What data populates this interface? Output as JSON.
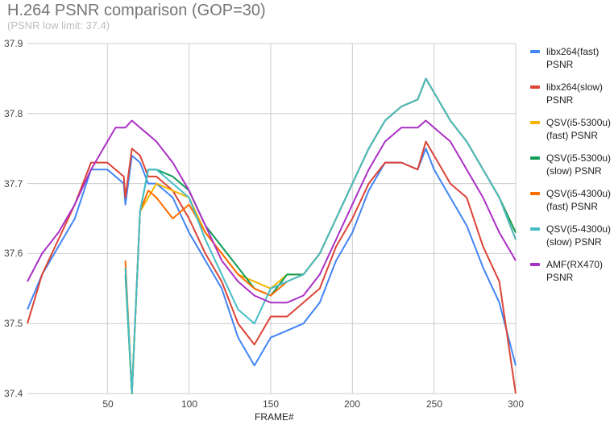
{
  "chart_data": {
    "type": "line",
    "title": "H.264 PSNR comparison (GOP=30)",
    "subtitle": "(PSNR low limit: 37.4)",
    "xlabel": "FRAME#",
    "ylabel": "",
    "xlim": [
      1,
      300
    ],
    "ylim": [
      37.4,
      37.9
    ],
    "grid": true,
    "legend_position": "right",
    "y_ticks": [
      "37.9",
      "37.8",
      "37.7",
      "37.6",
      "37.5",
      "37.4"
    ],
    "x_ticks": [
      "50",
      "100",
      "150",
      "200",
      "250",
      "300"
    ],
    "x": [
      1,
      10,
      20,
      30,
      40,
      50,
      55,
      60,
      61,
      65,
      70,
      75,
      80,
      90,
      100,
      110,
      120,
      130,
      140,
      150,
      160,
      170,
      180,
      190,
      200,
      210,
      220,
      230,
      240,
      245,
      250,
      260,
      270,
      280,
      290,
      300
    ],
    "series": [
      {
        "name": "libx264(fast) PSNR",
        "color": "#4285f4",
        "values": [
          37.52,
          37.57,
          37.61,
          37.65,
          37.72,
          37.72,
          37.71,
          37.7,
          37.67,
          37.74,
          37.73,
          37.7,
          37.7,
          37.68,
          37.63,
          37.59,
          37.55,
          37.48,
          37.44,
          37.48,
          37.49,
          37.5,
          37.53,
          37.59,
          37.63,
          37.69,
          37.73,
          37.73,
          37.72,
          37.75,
          37.72,
          37.68,
          37.64,
          37.58,
          37.53,
          37.44
        ]
      },
      {
        "name": "libx264(slow) PSNR",
        "color": "#db4437",
        "values": [
          37.5,
          37.57,
          37.62,
          37.67,
          37.73,
          37.73,
          37.72,
          37.71,
          37.68,
          37.75,
          37.74,
          37.71,
          37.71,
          37.69,
          37.65,
          37.6,
          37.56,
          37.5,
          37.47,
          37.51,
          37.51,
          37.53,
          37.55,
          37.61,
          37.65,
          37.7,
          37.73,
          37.73,
          37.72,
          37.76,
          37.74,
          37.7,
          37.68,
          37.61,
          37.56,
          37.4
        ]
      },
      {
        "name": "QSV(i5-5300u) (fast) PSNR",
        "color": "#f4b400",
        "values": [
          null,
          null,
          null,
          null,
          null,
          null,
          null,
          null,
          37.58,
          37.4,
          37.66,
          37.68,
          37.7,
          37.69,
          37.68,
          37.63,
          37.6,
          37.57,
          37.56,
          37.55,
          37.57,
          37.57,
          37.6,
          37.65,
          37.7,
          37.75,
          37.79,
          37.81,
          37.82,
          37.85,
          37.83,
          37.79,
          37.76,
          37.72,
          37.68,
          37.63
        ]
      },
      {
        "name": "QSV(i5-5300u) (slow) PSNR",
        "color": "#0f9d58",
        "values": [
          null,
          null,
          null,
          null,
          null,
          null,
          null,
          null,
          37.57,
          37.4,
          37.66,
          37.72,
          37.72,
          37.71,
          37.69,
          37.64,
          37.61,
          37.58,
          37.55,
          37.54,
          37.57,
          37.57,
          37.6,
          37.65,
          37.7,
          37.75,
          37.79,
          37.81,
          37.82,
          37.85,
          37.83,
          37.79,
          37.76,
          37.72,
          37.68,
          37.63
        ]
      },
      {
        "name": "QSV(i5-4300u) (fast) PSNR",
        "color": "#ff6d00",
        "values": [
          null,
          null,
          null,
          null,
          null,
          null,
          null,
          null,
          37.59,
          37.4,
          37.66,
          37.69,
          37.68,
          37.65,
          37.67,
          37.63,
          37.6,
          37.57,
          37.55,
          37.54,
          37.56,
          37.57,
          37.6,
          37.65,
          37.7,
          37.75,
          37.79,
          37.81,
          37.82,
          37.85,
          37.83,
          37.79,
          37.76,
          37.72,
          37.68,
          37.62
        ]
      },
      {
        "name": "QSV(i5-4300u) (slow) PSNR",
        "color": "#46bdc6",
        "values": [
          null,
          null,
          null,
          null,
          null,
          null,
          null,
          null,
          37.58,
          37.4,
          37.66,
          37.72,
          37.72,
          37.7,
          37.68,
          37.62,
          37.57,
          37.52,
          37.5,
          37.55,
          37.56,
          37.57,
          37.6,
          37.65,
          37.7,
          37.75,
          37.79,
          37.81,
          37.82,
          37.85,
          37.83,
          37.79,
          37.76,
          37.72,
          37.68,
          37.62
        ]
      },
      {
        "name": "AMF(RX470) PSNR",
        "color": "#ab30c4",
        "values": [
          37.56,
          37.6,
          37.63,
          37.67,
          37.72,
          37.76,
          37.78,
          37.78,
          37.78,
          37.79,
          37.78,
          37.77,
          37.76,
          37.73,
          37.69,
          37.64,
          37.59,
          37.56,
          37.54,
          37.53,
          37.53,
          37.54,
          37.57,
          37.62,
          37.67,
          37.72,
          37.76,
          37.78,
          37.78,
          37.79,
          37.78,
          37.76,
          37.72,
          37.68,
          37.63,
          37.59
        ]
      }
    ]
  },
  "legend": {
    "items": [
      {
        "label": "libx264(fast) PSNR",
        "color": "#4285f4"
      },
      {
        "label": "libx264(slow) PSNR",
        "color": "#db4437"
      },
      {
        "label": "QSV(i5-5300u) (fast) PSNR",
        "color": "#f4b400"
      },
      {
        "label": "QSV(i5-5300u) (slow) PSNR",
        "color": "#0f9d58"
      },
      {
        "label": "QSV(i5-4300u) (fast) PSNR",
        "color": "#ff6d00"
      },
      {
        "label": "QSV(i5-4300u) (slow) PSNR",
        "color": "#46bdc6"
      },
      {
        "label": "AMF(RX470) PSNR",
        "color": "#ab30c4"
      }
    ]
  }
}
